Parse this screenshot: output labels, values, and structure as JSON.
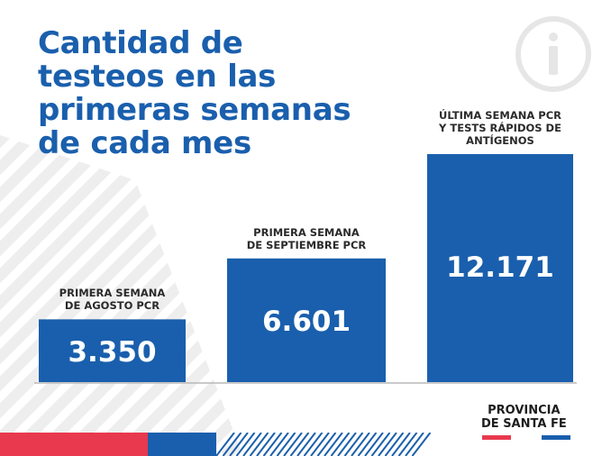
{
  "title_lines": [
    "Cantidad de",
    "testeos en las",
    "primeras semanas",
    "de cada mes"
  ],
  "chart_data": {
    "type": "bar",
    "categories": [
      [
        "PRIMERA SEMANA",
        "DE AGOSTO PCR"
      ],
      [
        "PRIMERA SEMANA",
        "DE SEPTIEMBRE PCR"
      ],
      [
        "ÚLTIMA SEMANA PCR",
        "Y TESTS RÁPIDOS DE",
        "ANTÍGENOS"
      ]
    ],
    "values": [
      3350,
      6601,
      12171
    ],
    "value_labels": [
      "3.350",
      "6.601",
      "12.171"
    ],
    "ylim": [
      0,
      12171
    ],
    "grid": false
  },
  "brand_lines": [
    "PROVINCIA",
    "DE SANTA FE"
  ],
  "colors": {
    "bar": "#1a5fad",
    "title": "#1a5fad",
    "accent_red": "#e8394e",
    "accent_blue": "#1a5fad"
  },
  "icons": [
    "info-icon"
  ]
}
